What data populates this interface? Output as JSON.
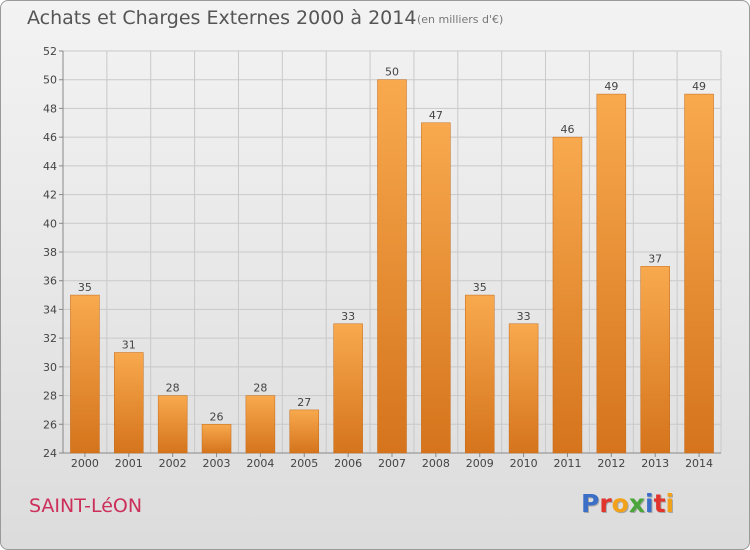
{
  "header": {
    "title": "Achats et Charges Externes 2000 à 2014",
    "subtitle": "(en milliers d'€)"
  },
  "footer": {
    "commune": "SAINT-LéON",
    "logo_text": "Proxiti",
    "logo_colors": [
      "#3b6fc7",
      "#e0342c",
      "#f1a21a",
      "#4aa53a",
      "#3b6fc7",
      "#e0342c",
      "#f1a21a"
    ]
  },
  "colors": {
    "bar_light": "#f8a94e",
    "bar_dark": "#d5741c",
    "grid": "#c9c9c9",
    "axis_text": "#444444"
  },
  "chart_data": {
    "type": "bar",
    "title": "Achats et Charges Externes 2000 à 2014",
    "subtitle": "(en milliers d'€)",
    "categories": [
      "2000",
      "2001",
      "2002",
      "2003",
      "2004",
      "2005",
      "2006",
      "2007",
      "2008",
      "2009",
      "2010",
      "2011",
      "2012",
      "2013",
      "2014"
    ],
    "values": [
      35,
      31,
      28,
      26,
      28,
      27,
      33,
      50,
      47,
      35,
      33,
      46,
      49,
      37,
      49
    ],
    "ylim": [
      24,
      52
    ],
    "yticks": [
      24,
      26,
      28,
      30,
      32,
      34,
      36,
      38,
      40,
      42,
      44,
      46,
      48,
      50,
      52
    ],
    "grid": true,
    "data_labels": true
  }
}
